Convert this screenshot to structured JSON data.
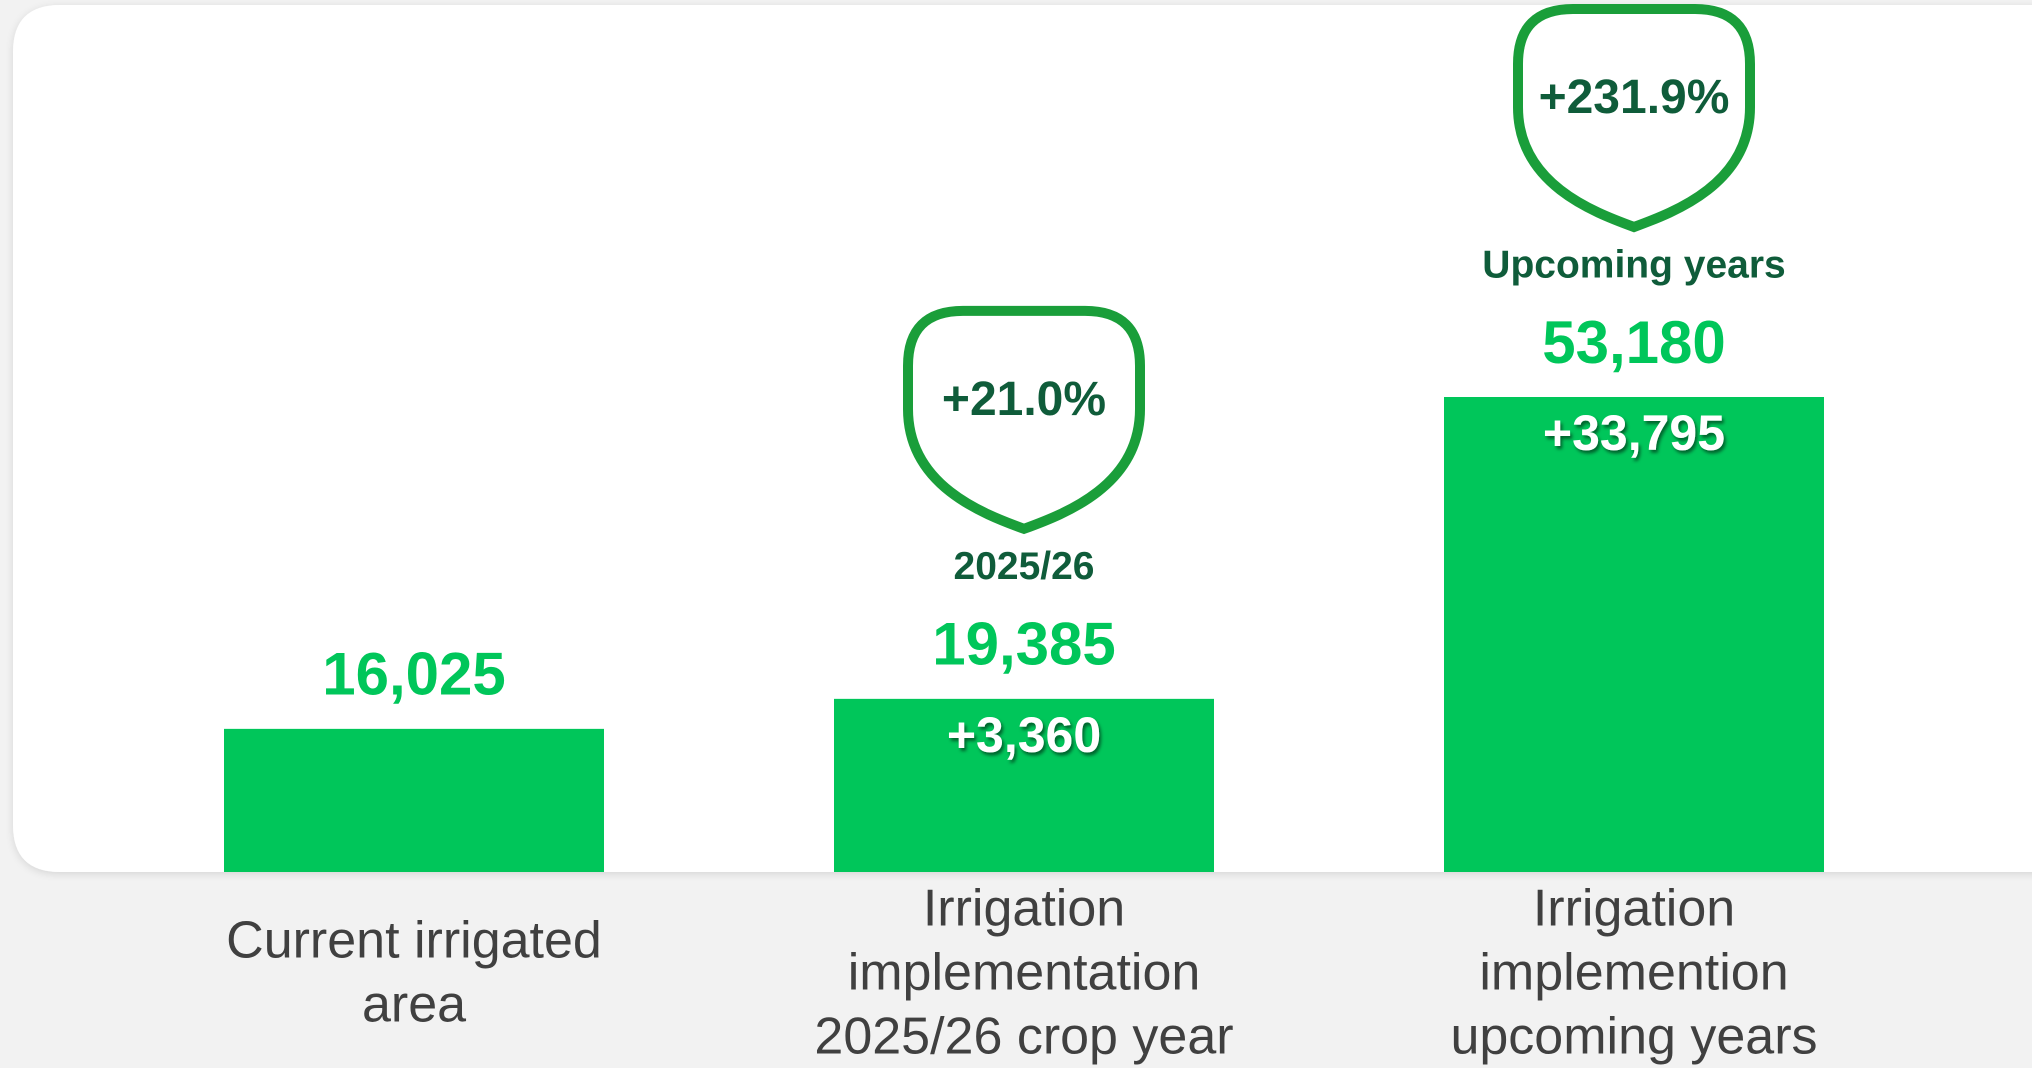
{
  "chart_data": {
    "type": "bar",
    "categories": [
      [
        "Current irrigated",
        "area"
      ],
      [
        "Irrigation",
        "implementation",
        "2025/26 crop year"
      ],
      [
        "Irrigation",
        "implemention",
        "upcoming years"
      ]
    ],
    "values": [
      16025,
      19385,
      53180
    ],
    "value_labels": [
      "16,025",
      "19,385",
      "53,180"
    ],
    "color": "#00c65a",
    "increments": {
      "values": [
        null,
        3360,
        33795
      ],
      "value_labels": [
        null,
        "+3,360",
        "+33,795"
      ]
    },
    "growth": {
      "values": [
        null,
        21.0,
        231.9
      ],
      "value_labels": [
        null,
        "+21.0%",
        "+231.9%"
      ]
    },
    "periods": [
      null,
      "2025/26",
      "Upcoming years"
    ]
  }
}
